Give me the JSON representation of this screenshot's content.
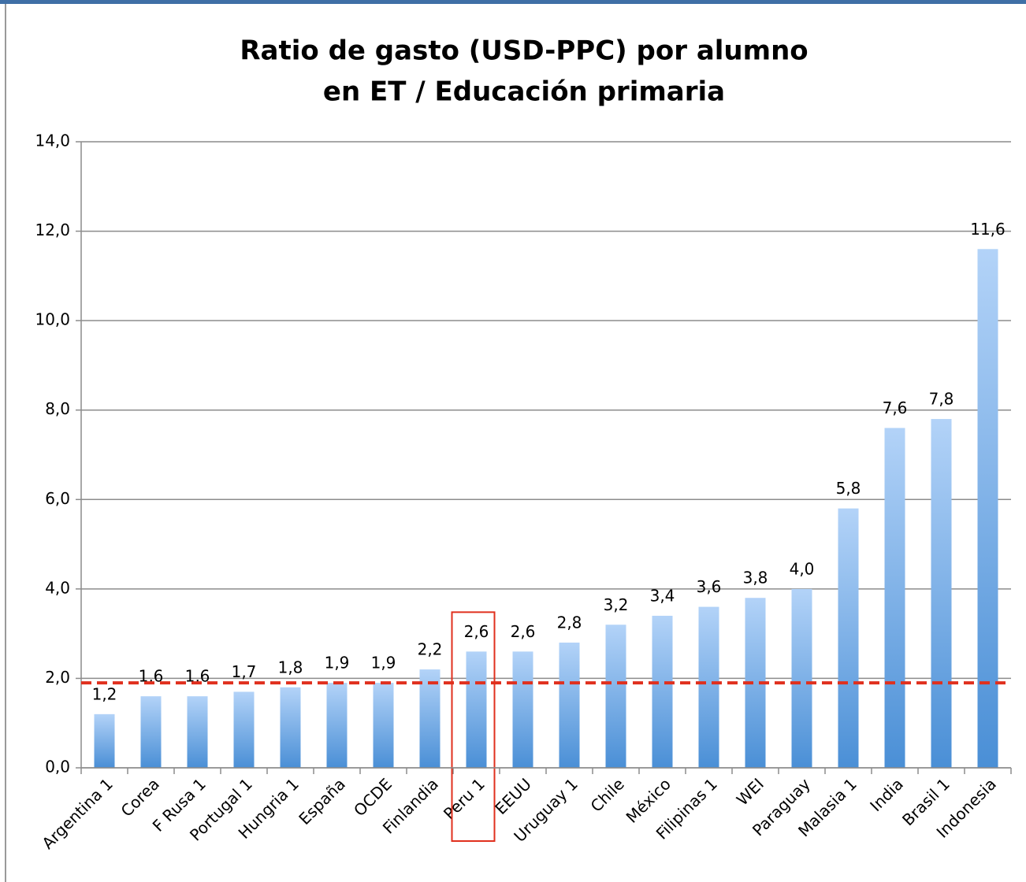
{
  "chart_data": {
    "type": "bar",
    "title": [
      "Ratio de gasto (USD-PPC) por alumno",
      "en ET / Educación primaria"
    ],
    "categories": [
      "Argentina 1",
      "Corea",
      "F Rusa 1",
      "Portugal 1",
      "Hungria 1",
      "España",
      "OCDE",
      "Finlandia",
      "Peru 1",
      "EEUU",
      "Uruguay 1",
      "Chile",
      "México",
      "Filipinas 1",
      "WEI",
      "Paraguay",
      "Malasia 1",
      "India",
      "Brasil 1",
      "Indonesia"
    ],
    "values": [
      1.2,
      1.6,
      1.6,
      1.7,
      1.8,
      1.9,
      1.9,
      2.2,
      2.6,
      2.6,
      2.8,
      3.2,
      3.4,
      3.6,
      3.8,
      4.0,
      5.8,
      7.6,
      7.8,
      11.6
    ],
    "value_labels": [
      "1,2",
      "1,6",
      "1,6",
      "1,7",
      "1,8",
      "1,9",
      "1,9",
      "2,2",
      "2,6",
      "2,6",
      "2,8",
      "3,2",
      "3,4",
      "3,6",
      "3,8",
      "4,0",
      "5,8",
      "7,6",
      "7,8",
      "11,6"
    ],
    "color": "#6fa8e6",
    "ylim": [
      0,
      14
    ],
    "yticks": [
      {
        "value": 0,
        "label": "0,0"
      },
      {
        "value": 2,
        "label": "2,0"
      },
      {
        "value": 4,
        "label": "4,0"
      },
      {
        "value": 6,
        "label": "6,0"
      },
      {
        "value": 8,
        "label": "8,0"
      },
      {
        "value": 10,
        "label": "10,0"
      },
      {
        "value": 12,
        "label": "12,0"
      },
      {
        "value": 14,
        "label": "14,0"
      }
    ],
    "grid": true,
    "reference_line": {
      "value": 1.9,
      "color": "#e0301e"
    },
    "highlight_category": "Peru 1",
    "highlight_color": "#e0301e"
  }
}
